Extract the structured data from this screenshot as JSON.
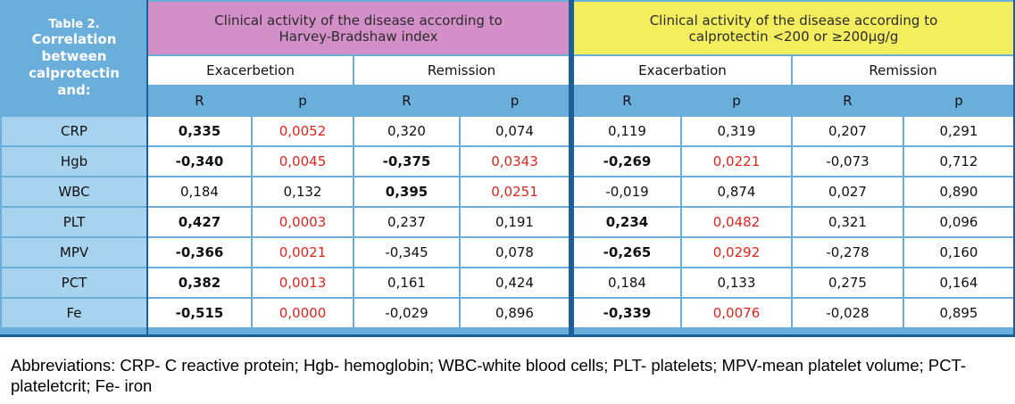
{
  "table": {
    "corner_title": "Table 2.",
    "corner_text": "Correlation between calprotectin and:",
    "group1_title": "Clinical activity of the disease according to Harvey-Bradshaw index",
    "group2_title": "Clinical activity of the disease according to calprotectin <200 or ≥200μg/g",
    "group1_sub": [
      "Exacerbetion",
      "Remission"
    ],
    "group2_sub": [
      "Exacerbation",
      "Remission"
    ],
    "col_heads": [
      "R",
      "p",
      "R",
      "p",
      "R",
      "p",
      "R",
      "p"
    ],
    "rows": [
      {
        "label": "CRP",
        "cells": [
          {
            "v": "0,335",
            "b": true,
            "red": false
          },
          {
            "v": "0,0052",
            "b": false,
            "red": true
          },
          {
            "v": "0,320",
            "b": false,
            "red": false
          },
          {
            "v": "0,074",
            "b": false,
            "red": false
          },
          {
            "v": "0,119",
            "b": false,
            "red": false
          },
          {
            "v": "0,319",
            "b": false,
            "red": false
          },
          {
            "v": "0,207",
            "b": false,
            "red": false
          },
          {
            "v": "0,291",
            "b": false,
            "red": false
          }
        ]
      },
      {
        "label": "Hgb",
        "cells": [
          {
            "v": "-0,340",
            "b": true,
            "red": false
          },
          {
            "v": "0,0045",
            "b": false,
            "red": true
          },
          {
            "v": "-0,375",
            "b": true,
            "red": false
          },
          {
            "v": "0,0343",
            "b": false,
            "red": true
          },
          {
            "v": "-0,269",
            "b": true,
            "red": false
          },
          {
            "v": "0,0221",
            "b": false,
            "red": true
          },
          {
            "v": "-0,073",
            "b": false,
            "red": false
          },
          {
            "v": "0,712",
            "b": false,
            "red": false
          }
        ]
      },
      {
        "label": "WBC",
        "cells": [
          {
            "v": "0,184",
            "b": false,
            "red": false
          },
          {
            "v": "0,132",
            "b": false,
            "red": false
          },
          {
            "v": "0,395",
            "b": true,
            "red": false
          },
          {
            "v": "0,0251",
            "b": false,
            "red": true
          },
          {
            "v": "-0,019",
            "b": false,
            "red": false
          },
          {
            "v": "0,874",
            "b": false,
            "red": false
          },
          {
            "v": "0,027",
            "b": false,
            "red": false
          },
          {
            "v": "0,890",
            "b": false,
            "red": false
          }
        ]
      },
      {
        "label": "PLT",
        "cells": [
          {
            "v": "0,427",
            "b": true,
            "red": false
          },
          {
            "v": "0,0003",
            "b": false,
            "red": true
          },
          {
            "v": "0,237",
            "b": false,
            "red": false
          },
          {
            "v": "0,191",
            "b": false,
            "red": false
          },
          {
            "v": "0,234",
            "b": true,
            "red": false
          },
          {
            "v": "0,0482",
            "b": false,
            "red": true
          },
          {
            "v": "0,321",
            "b": false,
            "red": false
          },
          {
            "v": "0,096",
            "b": false,
            "red": false
          }
        ]
      },
      {
        "label": "MPV",
        "cells": [
          {
            "v": "-0,366",
            "b": true,
            "red": false
          },
          {
            "v": "0,0021",
            "b": false,
            "red": true
          },
          {
            "v": "-0,345",
            "b": false,
            "red": false
          },
          {
            "v": "0,078",
            "b": false,
            "red": false
          },
          {
            "v": "-0,265",
            "b": true,
            "red": false
          },
          {
            "v": "0,0292",
            "b": false,
            "red": true
          },
          {
            "v": "-0,278",
            "b": false,
            "red": false
          },
          {
            "v": "0,160",
            "b": false,
            "red": false
          }
        ]
      },
      {
        "label": "PCT",
        "cells": [
          {
            "v": "0,382",
            "b": true,
            "red": false
          },
          {
            "v": "0,0013",
            "b": false,
            "red": true
          },
          {
            "v": "0,161",
            "b": false,
            "red": false
          },
          {
            "v": "0,424",
            "b": false,
            "red": false
          },
          {
            "v": "0,184",
            "b": false,
            "red": false
          },
          {
            "v": "0,133",
            "b": false,
            "red": false
          },
          {
            "v": "0,275",
            "b": false,
            "red": false
          },
          {
            "v": "0,164",
            "b": false,
            "red": false
          }
        ]
      },
      {
        "label": "Fe",
        "cells": [
          {
            "v": "-0,515",
            "b": true,
            "red": false
          },
          {
            "v": "0,0000",
            "b": false,
            "red": true
          },
          {
            "v": "-0,029",
            "b": false,
            "red": false
          },
          {
            "v": "0,896",
            "b": false,
            "red": false
          },
          {
            "v": "-0,339",
            "b": true,
            "red": false
          },
          {
            "v": "0,0076",
            "b": false,
            "red": true
          },
          {
            "v": "-0,028",
            "b": false,
            "red": false
          },
          {
            "v": "0,895",
            "b": false,
            "red": false
          }
        ]
      }
    ]
  },
  "footer": "Abbreviations: CRP- C reactive protein; Hgb- hemoglobin; WBC-white blood cells; PLT- platelets; MPV-mean platelet volume; PCT- plateletcrit; Fe- iron",
  "colors": {
    "frame": "#6aaedc",
    "row_label_bg": "#a8d3ef",
    "group1_header": "#d38fc8",
    "group2_header": "#f3ee5e",
    "significant_p": "#e0241b",
    "divider": "#1d5f97"
  }
}
